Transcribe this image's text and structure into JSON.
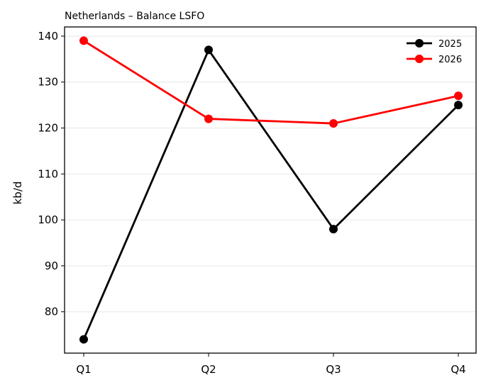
{
  "chart_data": {
    "type": "line",
    "title": "Netherlands – Balance LSFO",
    "xlabel": "",
    "ylabel": "kb/d",
    "categories": [
      "Q1",
      "Q2",
      "Q3",
      "Q4"
    ],
    "series": [
      {
        "name": "2025",
        "color": "#000000",
        "values": [
          74,
          137,
          98,
          125
        ]
      },
      {
        "name": "2026",
        "color": "#ff0000",
        "values": [
          139,
          122,
          121,
          127
        ]
      }
    ],
    "ylim": [
      71,
      142
    ],
    "yticks": [
      80,
      90,
      100,
      110,
      120,
      130,
      140
    ],
    "grid": "horizontal",
    "legend_position": "top-right",
    "marker": "circle"
  }
}
